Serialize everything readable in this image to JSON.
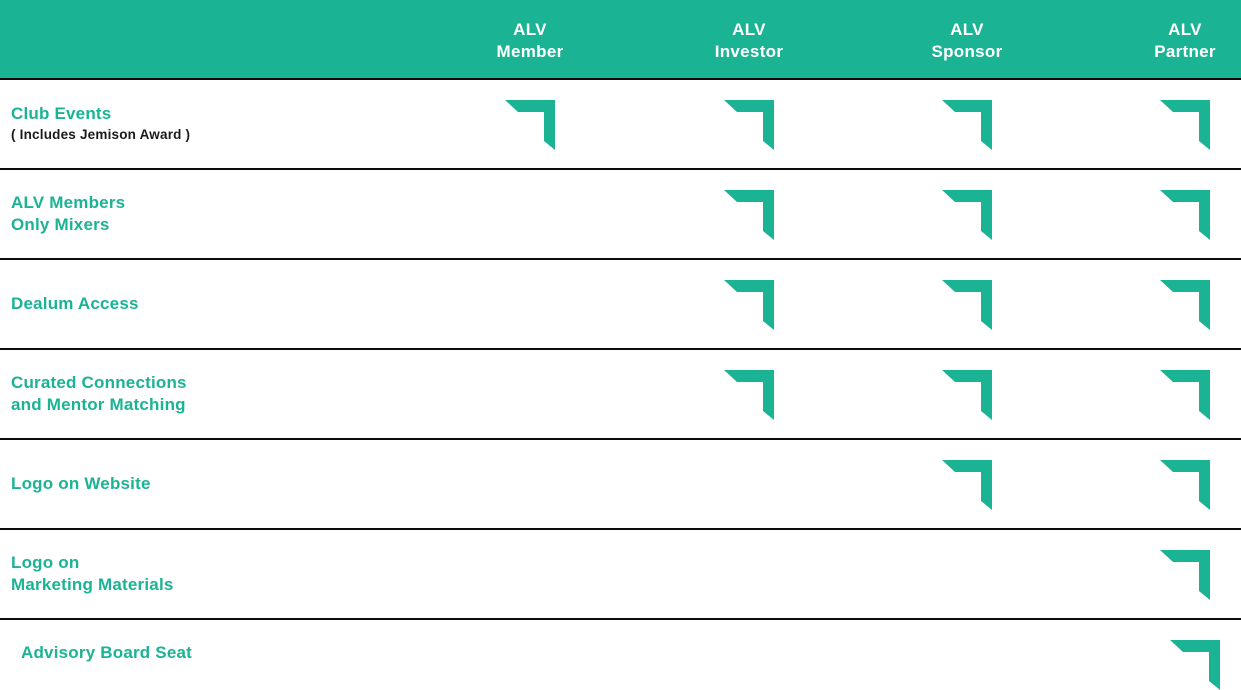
{
  "colors": {
    "accent": "#1ab394",
    "divider": "#0b0b0b",
    "note_text": "#1a1a1a"
  },
  "columns": [
    {
      "line1": "ALV",
      "line2": "Member"
    },
    {
      "line1": "ALV",
      "line2": "Investor"
    },
    {
      "line1": "ALV",
      "line2": "Sponsor"
    },
    {
      "line1": "ALV",
      "line2": "Partner"
    }
  ],
  "rows": [
    {
      "lines": [
        "Club Events"
      ],
      "note": "( Includes Jemison Award )",
      "included": [
        true,
        true,
        true,
        true
      ]
    },
    {
      "lines": [
        "ALV Members",
        "Only Mixers"
      ],
      "note": "",
      "included": [
        false,
        true,
        true,
        true
      ]
    },
    {
      "lines": [
        "Dealum Access"
      ],
      "note": "",
      "included": [
        false,
        true,
        true,
        true
      ]
    },
    {
      "lines": [
        "Curated Connections",
        "and Mentor Matching"
      ],
      "note": "",
      "included": [
        false,
        true,
        true,
        true
      ]
    },
    {
      "lines": [
        "Logo on Website"
      ],
      "note": "",
      "included": [
        false,
        false,
        true,
        true
      ]
    },
    {
      "lines": [
        "Logo on",
        "Marketing Materials"
      ],
      "note": "",
      "included": [
        false,
        false,
        false,
        true
      ]
    },
    {
      "lines": [
        "Advisory Board Seat"
      ],
      "note": "",
      "included": [
        false,
        false,
        false,
        true
      ]
    }
  ],
  "icons": {
    "included_mark": "check-corner-icon"
  }
}
